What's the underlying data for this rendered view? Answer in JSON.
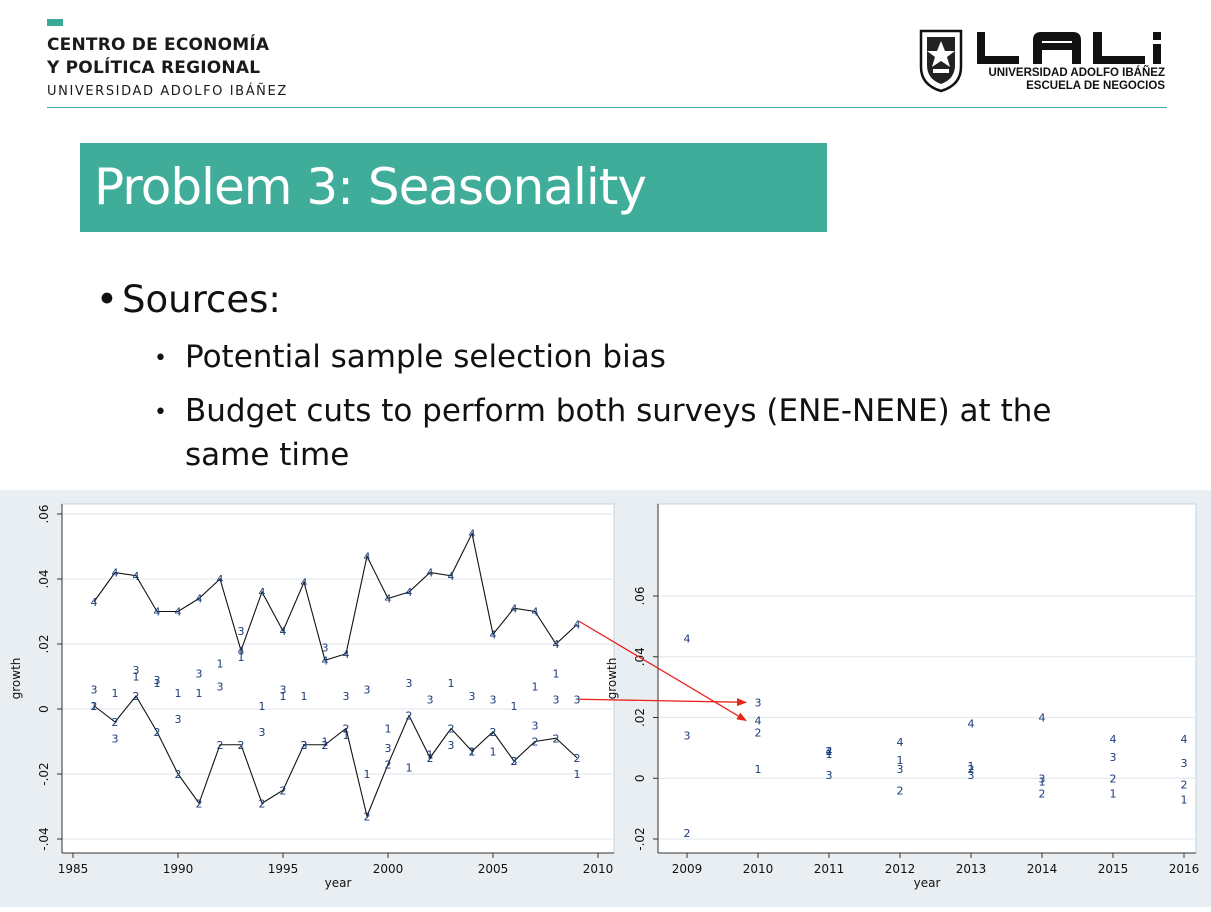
{
  "header": {
    "org_line1": "CENTRO DE ECONOMÍA",
    "org_line2": "Y POLÍTICA REGIONAL",
    "org_line3": "UNIVERSIDAD ADOLFO IBÁÑEZ",
    "uai_line1": "UNIVERSIDAD ADOLFO IBÁÑEZ",
    "uai_line2": "ESCUELA DE NEGOCIOS",
    "accent_color": "#40ad9a"
  },
  "title": "Problem 3: Seasonality",
  "bullets": {
    "main": "Sources:",
    "sub1": "Potential sample selection bias",
    "sub2_line1": "Budget cuts to perform both surveys (ENE-NENE) at the",
    "sub2_line2": "same time"
  },
  "chart_data": [
    {
      "type": "scatter",
      "xlabel": "year",
      "ylabel": "growth",
      "xlim": [
        1985,
        2010
      ],
      "ylim": [
        -0.04,
        0.06
      ],
      "xticks": [
        "1985",
        "1990",
        "1995",
        "2000",
        "2005",
        "2010"
      ],
      "yticks": [
        "-.04",
        "-.02",
        "0",
        ".02",
        ".04",
        ".06"
      ],
      "grid": true,
      "marker_color": "#1a3c78",
      "series": [
        {
          "name": "1",
          "connected": false,
          "points": [
            [
              1986,
              0.001
            ],
            [
              1987,
              0.005
            ],
            [
              1988,
              0.01
            ],
            [
              1989,
              0.008
            ],
            [
              1990,
              0.005
            ],
            [
              1991,
              0.005
            ],
            [
              1992,
              0.014
            ],
            [
              1993,
              0.016
            ],
            [
              1994,
              0.001
            ],
            [
              1995,
              0.004
            ],
            [
              1996,
              0.004
            ],
            [
              1997,
              -0.01
            ],
            [
              1998,
              -0.008
            ],
            [
              1999,
              -0.02
            ],
            [
              2000,
              -0.006
            ],
            [
              2001,
              -0.018
            ],
            [
              2002,
              -0.014
            ],
            [
              2003,
              0.008
            ],
            [
              2004,
              -0.013
            ],
            [
              2005,
              -0.013
            ],
            [
              2006,
              0.001
            ],
            [
              2007,
              0.007
            ],
            [
              2008,
              0.011
            ],
            [
              2009,
              -0.02
            ]
          ]
        },
        {
          "name": "2",
          "connected": true,
          "points": [
            [
              1986,
              0.001
            ],
            [
              1987,
              -0.004
            ],
            [
              1988,
              0.004
            ],
            [
              1989,
              -0.007
            ],
            [
              1990,
              -0.02
            ],
            [
              1991,
              -0.029
            ],
            [
              1992,
              -0.011
            ],
            [
              1993,
              -0.011
            ],
            [
              1994,
              -0.029
            ],
            [
              1995,
              -0.025
            ],
            [
              1996,
              -0.011
            ],
            [
              1997,
              -0.011
            ],
            [
              1998,
              -0.006
            ],
            [
              1999,
              -0.033
            ],
            [
              2000,
              -0.017
            ],
            [
              2001,
              -0.002
            ],
            [
              2002,
              -0.015
            ],
            [
              2003,
              -0.006
            ],
            [
              2004,
              -0.013
            ],
            [
              2005,
              -0.007
            ],
            [
              2006,
              -0.016
            ],
            [
              2007,
              -0.01
            ],
            [
              2008,
              -0.009
            ],
            [
              2009,
              -0.015
            ]
          ]
        },
        {
          "name": "3",
          "connected": false,
          "points": [
            [
              1986,
              0.006
            ],
            [
              1987,
              -0.009
            ],
            [
              1988,
              0.012
            ],
            [
              1989,
              0.009
            ],
            [
              1990,
              -0.003
            ],
            [
              1991,
              0.011
            ],
            [
              1992,
              0.007
            ],
            [
              1993,
              0.024
            ],
            [
              1994,
              -0.007
            ],
            [
              1995,
              0.006
            ],
            [
              1996,
              -0.011
            ],
            [
              1997,
              0.019
            ],
            [
              1998,
              0.004
            ],
            [
              1999,
              0.006
            ],
            [
              2000,
              -0.012
            ],
            [
              2001,
              0.008
            ],
            [
              2002,
              0.003
            ],
            [
              2003,
              -0.011
            ],
            [
              2004,
              0.004
            ],
            [
              2005,
              0.003
            ],
            [
              2006,
              -0.016
            ],
            [
              2007,
              -0.005
            ],
            [
              2008,
              0.003
            ],
            [
              2009,
              0.003
            ]
          ]
        },
        {
          "name": "4",
          "connected": true,
          "points": [
            [
              1986,
              0.033
            ],
            [
              1987,
              0.042
            ],
            [
              1988,
              0.041
            ],
            [
              1989,
              0.03
            ],
            [
              1990,
              0.03
            ],
            [
              1991,
              0.034
            ],
            [
              1992,
              0.04
            ],
            [
              1993,
              0.018
            ],
            [
              1994,
              0.036
            ],
            [
              1995,
              0.024
            ],
            [
              1996,
              0.039
            ],
            [
              1997,
              0.015
            ],
            [
              1998,
              0.017
            ],
            [
              1999,
              0.047
            ],
            [
              2000,
              0.034
            ],
            [
              2001,
              0.036
            ],
            [
              2002,
              0.042
            ],
            [
              2003,
              0.041
            ],
            [
              2004,
              0.054
            ],
            [
              2005,
              0.023
            ],
            [
              2006,
              0.031
            ],
            [
              2007,
              0.03
            ],
            [
              2008,
              0.02
            ],
            [
              2009,
              0.026
            ]
          ]
        }
      ]
    },
    {
      "type": "scatter",
      "xlabel": "year",
      "ylabel": "growth",
      "xlim": [
        2009,
        2016
      ],
      "ylim": [
        -0.02,
        0.06
      ],
      "xticks": [
        "2009",
        "2010",
        "2011",
        "2012",
        "2013",
        "2014",
        "2015",
        "2016"
      ],
      "yticks": [
        "-.02",
        "0",
        ".02",
        ".04",
        ".06"
      ],
      "grid": true,
      "marker_color": "#1a3c78",
      "series": [
        {
          "name": "1",
          "points": [
            [
              2010,
              0.003
            ],
            [
              2011,
              0.008
            ],
            [
              2012,
              0.006
            ],
            [
              2013,
              0.004
            ],
            [
              2014,
              -0.001
            ],
            [
              2015,
              -0.005
            ],
            [
              2016,
              -0.007
            ]
          ]
        },
        {
          "name": "2",
          "points": [
            [
              2009,
              -0.018
            ],
            [
              2010,
              0.015
            ],
            [
              2011,
              0.009
            ],
            [
              2012,
              -0.004
            ],
            [
              2013,
              0.003
            ],
            [
              2014,
              -0.005
            ],
            [
              2015,
              0.0
            ],
            [
              2016,
              -0.002
            ]
          ]
        },
        {
          "name": "3",
          "points": [
            [
              2009,
              0.014
            ],
            [
              2010,
              0.025
            ],
            [
              2011,
              0.001
            ],
            [
              2012,
              0.003
            ],
            [
              2013,
              0.001
            ],
            [
              2014,
              0.0
            ],
            [
              2015,
              0.007
            ],
            [
              2016,
              0.005
            ]
          ]
        },
        {
          "name": "4",
          "points": [
            [
              2009,
              0.046
            ],
            [
              2010,
              0.019
            ],
            [
              2011,
              0.009
            ],
            [
              2012,
              0.012
            ],
            [
              2013,
              0.018
            ],
            [
              2014,
              0.02
            ],
            [
              2015,
              0.013
            ],
            [
              2016,
              0.013
            ]
          ]
        }
      ]
    }
  ],
  "annotations": {
    "arrow_color": "#e8241c"
  }
}
